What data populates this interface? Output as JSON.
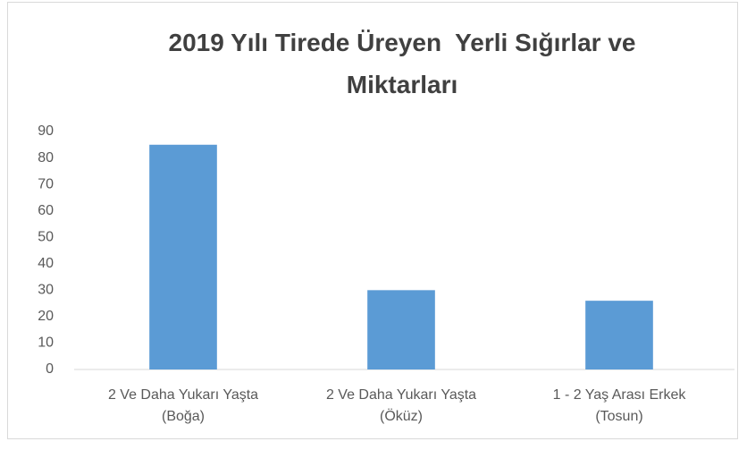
{
  "chart_data": {
    "type": "bar",
    "title": "2019 Yılı Tirede Üreyen  Yerli Sığırlar ve Miktarları",
    "categories": [
      "2 Ve Daha Yukarı Yaşta (Boğa)",
      "2 Ve Daha Yukarı Yaşta (Öküz)",
      "1 - 2 Yaş Arası Erkek (Tosun)"
    ],
    "values": [
      85,
      30,
      26
    ],
    "color": "#5b9bd5",
    "ylim": [
      0,
      90
    ],
    "yticks": [
      0,
      10,
      20,
      30,
      40,
      50,
      60,
      70,
      80,
      90
    ],
    "grid": false
  }
}
